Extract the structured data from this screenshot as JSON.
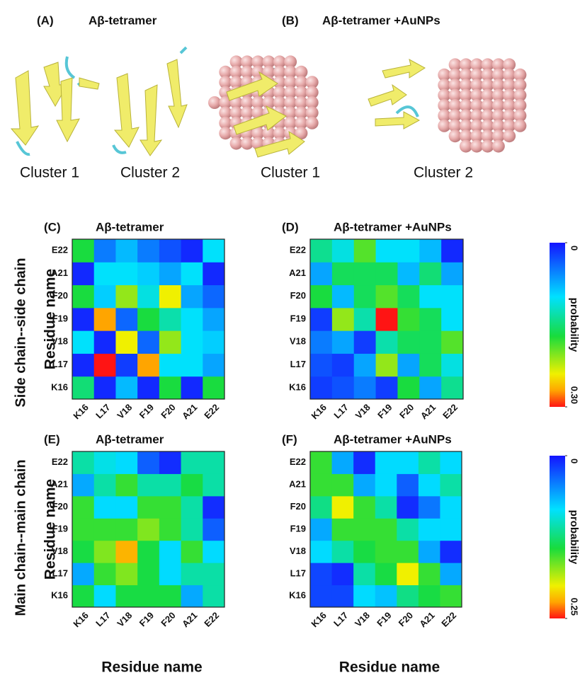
{
  "structures": {
    "panels": [
      {
        "label": "(A)",
        "title": "Aβ-tetramer"
      },
      {
        "label": "(B)",
        "title": "Aβ-tetramer +AuNPs"
      }
    ],
    "clusters": [
      "Cluster 1",
      "Cluster 2",
      "Cluster 1",
      "Cluster 2"
    ]
  },
  "row_labels": [
    "Side chain--side chain",
    "Main chain--main chain"
  ],
  "chart_data": [
    {
      "type": "heatmap",
      "panel": "(C)",
      "title": "Aβ-tetramer",
      "ylabel": "Residue name",
      "x": [
        "K16",
        "L17",
        "V18",
        "F19",
        "F20",
        "A21",
        "E22"
      ],
      "y": [
        "K16",
        "L17",
        "V18",
        "F19",
        "F20",
        "A21",
        "E22"
      ],
      "zlim": [
        0,
        0.3
      ],
      "values": [
        [
          0.15,
          0.01,
          0.08,
          0.01,
          0.17,
          0.01,
          0.17
        ],
        [
          0.01,
          0.3,
          0.02,
          0.27,
          0.1,
          0.1,
          0.07
        ],
        [
          0.1,
          0.01,
          0.24,
          0.04,
          0.21,
          0.1,
          0.09
        ],
        [
          0.01,
          0.27,
          0.04,
          0.17,
          0.13,
          0.1,
          0.07
        ],
        [
          0.17,
          0.09,
          0.21,
          0.11,
          0.24,
          0.07,
          0.04
        ],
        [
          0.01,
          0.1,
          0.1,
          0.09,
          0.07,
          0.1,
          0.01
        ],
        [
          0.17,
          0.05,
          0.08,
          0.05,
          0.03,
          0.01,
          0.1
        ]
      ]
    },
    {
      "type": "heatmap",
      "panel": "(D)",
      "title": "Aβ-tetramer +AuNPs",
      "x": [
        "K16",
        "L17",
        "V18",
        "F19",
        "F20",
        "A21",
        "E22"
      ],
      "y": [
        "K16",
        "L17",
        "V18",
        "F19",
        "F20",
        "A21",
        "E22"
      ],
      "zlim": [
        0,
        0.3
      ],
      "zticks": [
        0,
        {
          "value": 0.3,
          "label": "0.30"
        }
      ],
      "zlabel": "probability",
      "values": [
        [
          0.02,
          0.03,
          0.05,
          0.02,
          0.17,
          0.07,
          0.14
        ],
        [
          0.03,
          0.02,
          0.07,
          0.21,
          0.07,
          0.16,
          0.11
        ],
        [
          0.05,
          0.07,
          0.02,
          0.13,
          0.16,
          0.16,
          0.19
        ],
        [
          0.02,
          0.21,
          0.13,
          0.3,
          0.18,
          0.16,
          0.1
        ],
        [
          0.17,
          0.08,
          0.16,
          0.19,
          0.16,
          0.1,
          0.1
        ],
        [
          0.07,
          0.16,
          0.16,
          0.16,
          0.08,
          0.15,
          0.07
        ],
        [
          0.14,
          0.11,
          0.19,
          0.1,
          0.1,
          0.08,
          0.01
        ]
      ]
    },
    {
      "type": "heatmap",
      "panel": "(E)",
      "title": "Aβ-tetramer",
      "ylabel": "Residue name",
      "xlabel": "Residue name",
      "x": [
        "K16",
        "L17",
        "V18",
        "F19",
        "F20",
        "A21",
        "E22"
      ],
      "y": [
        "K16",
        "L17",
        "V18",
        "F19",
        "F20",
        "A21",
        "E22"
      ],
      "zlim": [
        0,
        0.25
      ],
      "values": [
        [
          0.14,
          0.08,
          0.14,
          0.14,
          0.14,
          0.06,
          0.11
        ],
        [
          0.06,
          0.15,
          0.17,
          0.14,
          0.08,
          0.11,
          0.11
        ],
        [
          0.14,
          0.17,
          0.22,
          0.14,
          0.08,
          0.15,
          0.08
        ],
        [
          0.15,
          0.15,
          0.15,
          0.17,
          0.15,
          0.11,
          0.03
        ],
        [
          0.15,
          0.08,
          0.08,
          0.15,
          0.15,
          0.11,
          0.01
        ],
        [
          0.06,
          0.11,
          0.15,
          0.11,
          0.11,
          0.14,
          0.11
        ],
        [
          0.11,
          0.09,
          0.08,
          0.03,
          0.01,
          0.11,
          0.11
        ]
      ]
    },
    {
      "type": "heatmap",
      "panel": "(F)",
      "title": "Aβ-tetramer +AuNPs",
      "xlabel": "Residue name",
      "x": [
        "K16",
        "L17",
        "V18",
        "F19",
        "F20",
        "A21",
        "E22"
      ],
      "y": [
        "K16",
        "L17",
        "V18",
        "F19",
        "F20",
        "A21",
        "E22"
      ],
      "zlim": [
        0,
        0.25
      ],
      "zticks": [
        0,
        0.25
      ],
      "zlabel": "probability",
      "values": [
        [
          0.02,
          0.02,
          0.08,
          0.07,
          0.12,
          0.14,
          0.15
        ],
        [
          0.02,
          0.01,
          0.11,
          0.14,
          0.2,
          0.15,
          0.06
        ],
        [
          0.08,
          0.11,
          0.14,
          0.15,
          0.15,
          0.06,
          0.01
        ],
        [
          0.06,
          0.15,
          0.15,
          0.15,
          0.11,
          0.08,
          0.08
        ],
        [
          0.12,
          0.2,
          0.15,
          0.11,
          0.01,
          0.04,
          0.08
        ],
        [
          0.15,
          0.15,
          0.06,
          0.08,
          0.03,
          0.08,
          0.11
        ],
        [
          0.15,
          0.06,
          0.01,
          0.08,
          0.08,
          0.11,
          0.08
        ]
      ]
    }
  ]
}
